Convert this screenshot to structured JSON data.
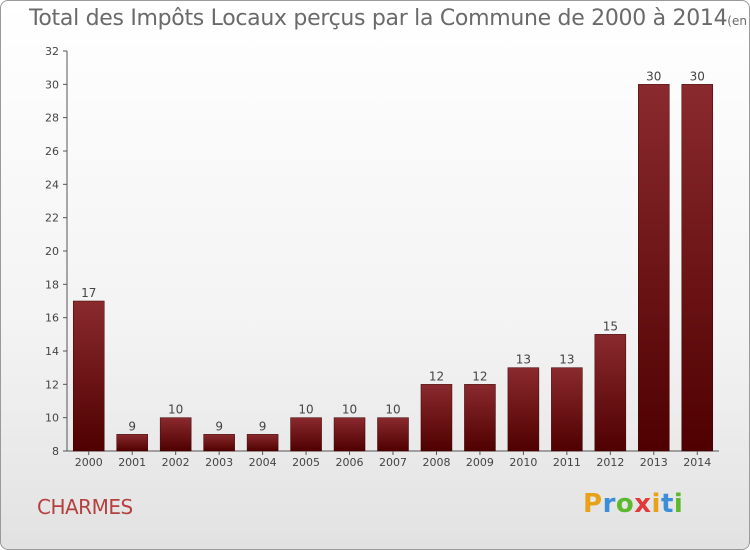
{
  "chart_data": {
    "type": "bar",
    "title": "Total des Impôts Locaux perçus par la Commune de 2000 à 2014",
    "unit": "(en milliers d'€)",
    "categories": [
      "2000",
      "2001",
      "2002",
      "2003",
      "2004",
      "2005",
      "2006",
      "2007",
      "2008",
      "2009",
      "2010",
      "2011",
      "2012",
      "2013",
      "2014"
    ],
    "values": [
      17,
      9,
      10,
      9,
      9,
      10,
      10,
      10,
      12,
      12,
      13,
      13,
      15,
      30,
      30
    ],
    "ylim": [
      8,
      32
    ],
    "yticks": [
      8,
      10,
      12,
      14,
      16,
      18,
      20,
      22,
      24,
      26,
      28,
      30,
      32
    ],
    "xlabel": "",
    "ylabel": "",
    "grid": false,
    "bar_color_top": "#8a2a2e",
    "bar_color_bottom": "#4f0000"
  },
  "commune": "CHARMES",
  "logo": {
    "letters": [
      "P",
      "r",
      "o",
      "x",
      "i",
      "t",
      "i"
    ],
    "colors": [
      "#e8a21a",
      "#3a8fd8",
      "#5cb82e",
      "#e03a3a",
      "#e8a21a",
      "#3a8fd8",
      "#5cb82e"
    ]
  }
}
